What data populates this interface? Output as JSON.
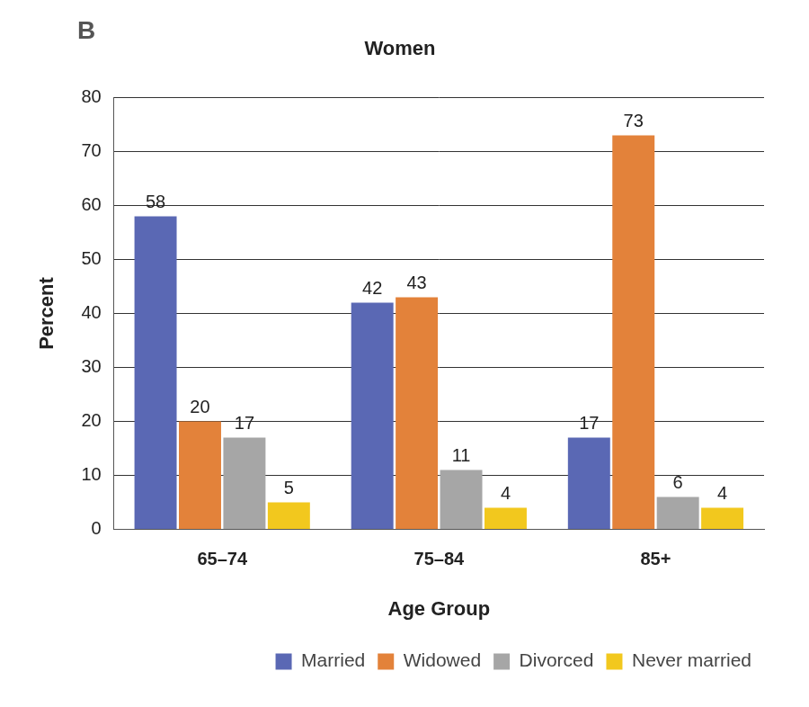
{
  "chart_data": {
    "type": "bar",
    "title": "Women",
    "annotations": [
      "B"
    ],
    "x_label": "Age Group",
    "y_label": "Percent",
    "categories": [
      "65–74",
      "75–84",
      "85+"
    ],
    "series": [
      {
        "name": "Married",
        "color": "#5a68b4",
        "values": [
          58,
          42,
          17
        ]
      },
      {
        "name": "Widowed",
        "color": "#e3823a",
        "values": [
          20,
          43,
          73
        ]
      },
      {
        "name": "Divorced",
        "color": "#a6a6a6",
        "values": [
          17,
          11,
          6
        ]
      },
      {
        "name": "Never married",
        "color": "#f2c81e",
        "values": [
          5,
          4,
          4
        ]
      }
    ],
    "ylim": [
      0,
      80
    ],
    "yticks": [
      0,
      10,
      20,
      30,
      40,
      50,
      60,
      70,
      80
    ],
    "grid": true,
    "legend": "bottom-right",
    "data_labels": true
  }
}
